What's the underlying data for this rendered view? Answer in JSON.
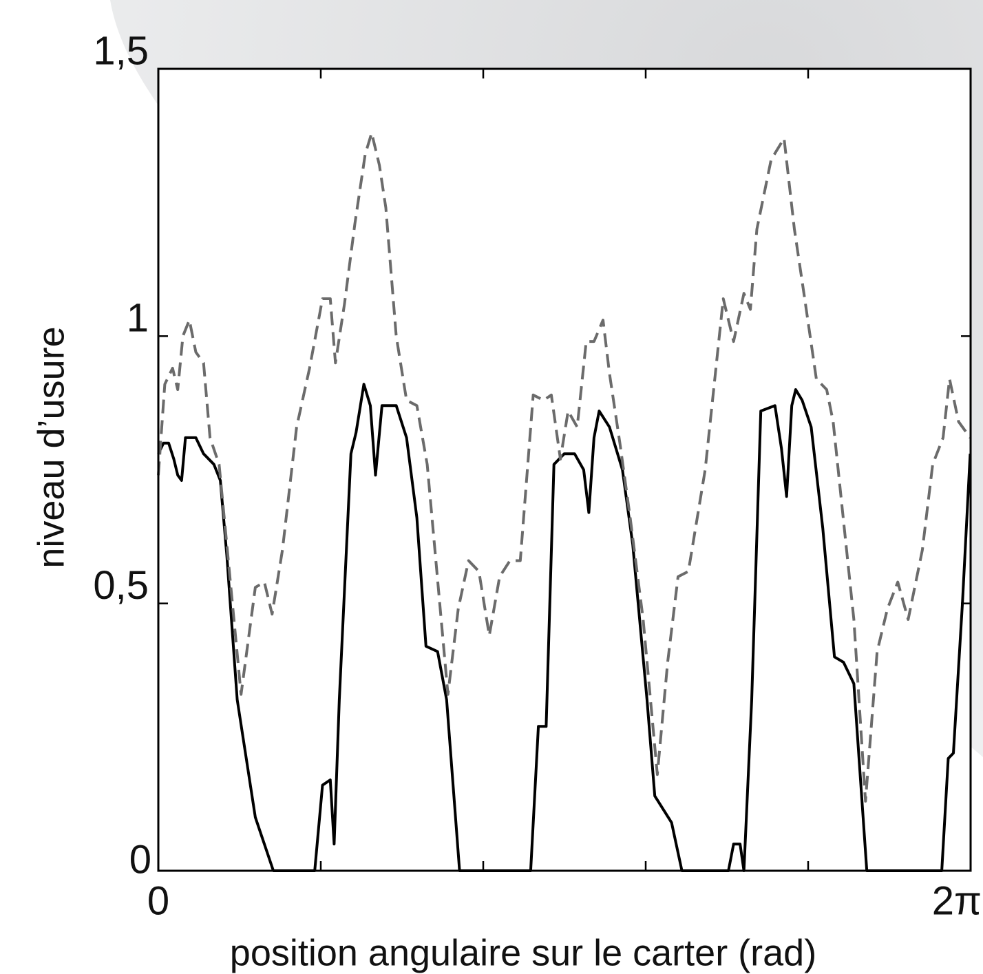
{
  "chart_data": {
    "type": "line",
    "xlabel": "position angulaire sur le carter (rad)",
    "ylabel": "niveau d’usure",
    "xlim": [
      0,
      6.2832
    ],
    "ylim": [
      0,
      1.5
    ],
    "xticks": [
      0,
      {
        "value": 1.2566
      },
      {
        "value": 2.5133
      },
      {
        "value": 3.7699
      },
      {
        "value": 5.0265
      },
      {
        "value": 6.2832,
        "label": "2π"
      }
    ],
    "yticks": [
      0,
      {
        "value": 0.5,
        "label": "0,5"
      },
      1,
      {
        "value": 1.5,
        "label": "1,5"
      }
    ],
    "series": [
      {
        "color": "#000000",
        "line_style": "solid",
        "x": [
          0,
          0.04,
          0.08,
          0.12,
          0.15,
          0.18,
          0.21,
          0.29,
          0.35,
          0.43,
          0.48,
          0.53,
          0.61,
          0.75,
          0.89,
          1.21,
          1.27,
          1.33,
          1.36,
          1.4,
          1.49,
          1.53,
          1.59,
          1.64,
          1.68,
          1.73,
          1.84,
          1.92,
          2.0,
          2.07,
          2.16,
          2.23,
          2.33,
          2.88,
          2.94,
          3.0,
          3.06,
          3.14,
          3.22,
          3.29,
          3.33,
          3.37,
          3.41,
          3.49,
          3.59,
          3.67,
          3.78,
          3.84,
          3.97,
          4.05,
          4.41,
          4.45,
          4.5,
          4.53,
          4.59,
          4.66,
          4.77,
          4.82,
          4.86,
          4.9,
          4.93,
          4.98,
          5.05,
          5.14,
          5.23,
          5.3,
          5.38,
          5.48,
          6.06,
          6.11,
          6.15,
          6.22,
          6.28
        ],
        "values": [
          0.78,
          0.8,
          0.8,
          0.77,
          0.74,
          0.73,
          0.81,
          0.81,
          0.78,
          0.76,
          0.73,
          0.59,
          0.32,
          0.1,
          0,
          0,
          0.16,
          0.17,
          0.05,
          0.32,
          0.78,
          0.82,
          0.91,
          0.87,
          0.74,
          0.87,
          0.87,
          0.81,
          0.66,
          0.42,
          0.41,
          0.32,
          0,
          0,
          0.27,
          0.27,
          0.76,
          0.78,
          0.78,
          0.75,
          0.67,
          0.81,
          0.86,
          0.83,
          0.75,
          0.61,
          0.32,
          0.14,
          0.09,
          0,
          0,
          0.05,
          0.05,
          0,
          0.32,
          0.86,
          0.87,
          0.79,
          0.7,
          0.87,
          0.9,
          0.88,
          0.83,
          0.64,
          0.4,
          0.39,
          0.35,
          0,
          0,
          0.21,
          0.22,
          0.5,
          0.78
        ]
      },
      {
        "color": "#6b6b6b",
        "line_style": "dashed",
        "x": [
          0,
          0.05,
          0.11,
          0.15,
          0.19,
          0.24,
          0.29,
          0.35,
          0.4,
          0.47,
          0.53,
          0.64,
          0.75,
          0.82,
          0.88,
          0.96,
          1.07,
          1.17,
          1.27,
          1.33,
          1.37,
          1.44,
          1.52,
          1.6,
          1.65,
          1.71,
          1.76,
          1.84,
          1.92,
          2.0,
          2.08,
          2.24,
          2.32,
          2.4,
          2.48,
          2.56,
          2.64,
          2.72,
          2.8,
          2.9,
          2.98,
          3.04,
          3.11,
          3.17,
          3.24,
          3.31,
          3.37,
          3.44,
          3.49,
          3.57,
          3.65,
          3.75,
          3.86,
          3.94,
          4.02,
          4.1,
          4.23,
          4.37,
          4.45,
          4.53,
          4.58,
          4.63,
          4.74,
          4.84,
          4.92,
          5.0,
          5.09,
          5.17,
          5.22,
          5.38,
          5.47,
          5.56,
          5.64,
          5.72,
          5.8,
          5.91,
          5.99,
          6.07,
          6.12,
          6.19,
          6.28
        ],
        "values": [
          0.74,
          0.91,
          0.94,
          0.9,
          1.0,
          1.03,
          0.97,
          0.95,
          0.81,
          0.76,
          0.61,
          0.33,
          0.53,
          0.54,
          0.48,
          0.6,
          0.83,
          0.94,
          1.07,
          1.07,
          0.95,
          1.06,
          1.21,
          1.34,
          1.38,
          1.32,
          1.24,
          1.0,
          0.88,
          0.87,
          0.76,
          0.33,
          0.49,
          0.58,
          0.56,
          0.44,
          0.55,
          0.58,
          0.58,
          0.89,
          0.88,
          0.89,
          0.77,
          0.86,
          0.83,
          0.99,
          0.99,
          1.03,
          0.93,
          0.8,
          0.66,
          0.47,
          0.18,
          0.39,
          0.55,
          0.56,
          0.75,
          1.07,
          0.99,
          1.08,
          1.05,
          1.2,
          1.33,
          1.37,
          1.2,
          1.07,
          0.92,
          0.9,
          0.84,
          0.47,
          0.13,
          0.41,
          0.49,
          0.54,
          0.47,
          0.6,
          0.76,
          0.81,
          0.92,
          0.84,
          0.81
        ]
      }
    ]
  }
}
